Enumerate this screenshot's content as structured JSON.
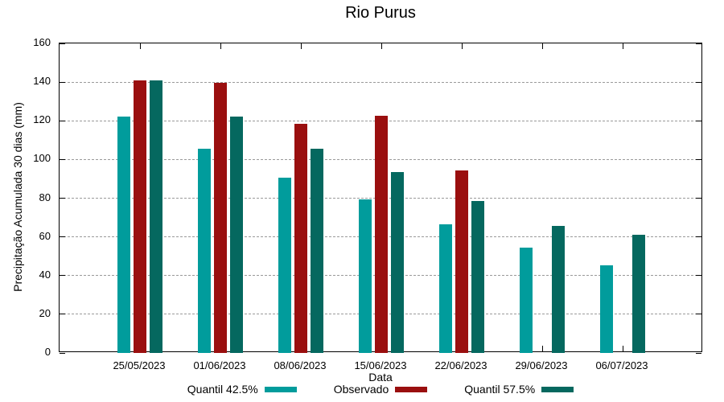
{
  "chart_data": {
    "type": "bar",
    "title": "Rio Purus",
    "xlabel": "Data",
    "ylabel": "Precipitação Acumulada 30 dias (mm)",
    "categories": [
      "25/05/2023",
      "01/06/2023",
      "08/06/2023",
      "15/06/2023",
      "22/06/2023",
      "29/06/2023",
      "06/07/2023"
    ],
    "series": [
      {
        "name": "Quantil 42.5%",
        "color": "#019C9C",
        "values": [
          122,
          105.5,
          90.5,
          79.5,
          66.5,
          54.5,
          45.5
        ]
      },
      {
        "name": "Observado",
        "color": "#9A0F0F",
        "values": [
          141,
          139.5,
          118.5,
          122.5,
          94.5,
          null,
          null
        ]
      },
      {
        "name": "Quantil 57.5%",
        "color": "#05685F",
        "values": [
          141,
          122,
          105.5,
          93.5,
          78.5,
          65.5,
          61
        ]
      }
    ],
    "ylim": [
      0,
      160
    ],
    "ytick_step": 20,
    "yticks": [
      0,
      20,
      40,
      60,
      80,
      100,
      120,
      140,
      160
    ],
    "grid": "horizontal-dashed",
    "grid_color": "#9a9a9a",
    "axis_color": "#000000",
    "legend_position": "bottom"
  }
}
